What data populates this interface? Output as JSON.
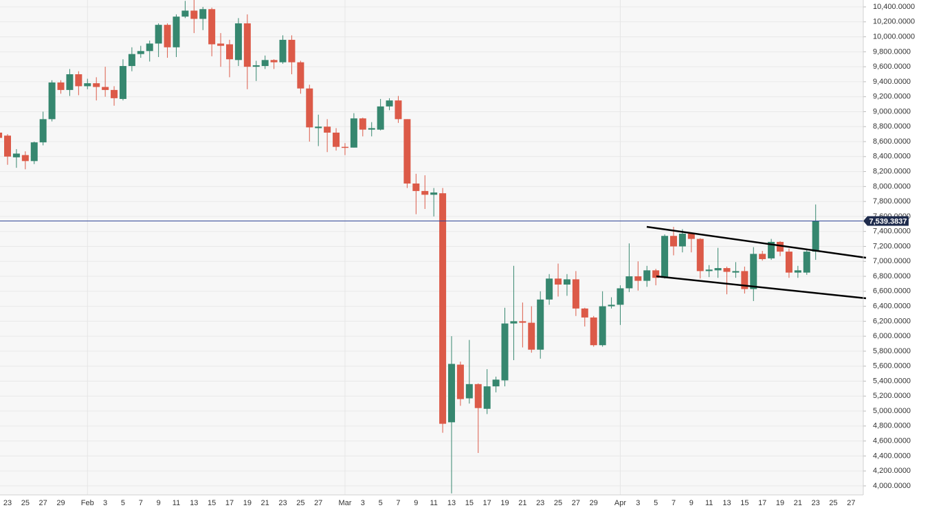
{
  "chart_data": {
    "type": "candlestick",
    "categories": [
      null,
      "23",
      null,
      "25",
      null,
      "27",
      null,
      "29",
      null,
      null,
      "Feb",
      null,
      "3",
      null,
      "5",
      null,
      "7",
      null,
      "9",
      null,
      "11",
      null,
      "13",
      null,
      "15",
      null,
      "17",
      null,
      "19",
      null,
      "21",
      null,
      "23",
      null,
      "25",
      null,
      "27",
      null,
      null,
      "Mar",
      null,
      "3",
      null,
      "5",
      null,
      "7",
      null,
      "9",
      null,
      "11",
      null,
      "13",
      null,
      "15",
      null,
      "17",
      null,
      "19",
      null,
      "21",
      null,
      "23",
      null,
      "25",
      null,
      "27",
      null,
      "29",
      null,
      null,
      "Apr",
      null,
      "3",
      null,
      "5",
      null,
      "7",
      null,
      "9",
      null,
      "11",
      null,
      "13",
      null,
      "15",
      null,
      "17",
      null,
      "19",
      null,
      "21",
      null,
      "23",
      null,
      "25",
      null,
      "27"
    ],
    "open": [
      8720,
      8680,
      8390,
      8420,
      8340,
      8590,
      8900,
      9390,
      9290,
      9500,
      9340,
      9380,
      9330,
      9290,
      9170,
      9610,
      9770,
      9810,
      9910,
      10160,
      9860,
      10270,
      10350,
      10240,
      10370,
      9910,
      9900,
      9690,
      10180,
      9600,
      9610,
      9690,
      9660,
      9960,
      9660,
      9310,
      8780,
      8800,
      8720,
      8530,
      8520,
      8910,
      8760,
      8760,
      9070,
      9150,
      8900,
      8040,
      7940,
      7890,
      7910,
      4850,
      5620,
      5170,
      5360,
      5030,
      5330,
      5410,
      6170,
      6200,
      6180,
      5820,
      6490,
      6770,
      6690,
      6760,
      6370,
      6250,
      5880,
      6400,
      6420,
      6640,
      6800,
      6740,
      6880,
      6780,
      7340,
      7200,
      7370,
      7300,
      6870,
      6880,
      6910,
      6850,
      6870,
      6630,
      7100,
      7040,
      7260,
      7130,
      6850,
      6850,
      7130,
      null,
      null,
      null,
      null
    ],
    "high": [
      8800,
      8700,
      8500,
      8470,
      8600,
      9000,
      9420,
      9420,
      9570,
      9540,
      9440,
      9460,
      9600,
      9340,
      9700,
      9860,
      9880,
      9950,
      10180,
      10180,
      10300,
      10480,
      10500,
      10400,
      10390,
      10050,
      9960,
      10250,
      10300,
      9680,
      9750,
      9700,
      10020,
      10020,
      9680,
      9360,
      8960,
      8900,
      8780,
      8580,
      8980,
      8920,
      8860,
      9170,
      9180,
      9210,
      8900,
      8170,
      8150,
      7980,
      7980,
      6000,
      5660,
      5950,
      5370,
      5560,
      5460,
      6380,
      6940,
      6450,
      6400,
      6600,
      6830,
      6970,
      6830,
      6870,
      6380,
      6270,
      6600,
      6520,
      6680,
      7240,
      7000,
      6940,
      6900,
      7360,
      7460,
      7430,
      7380,
      7310,
      6950,
      7180,
      6930,
      6990,
      6930,
      7190,
      7140,
      7300,
      7270,
      7170,
      6940,
      7150,
      7760,
      null,
      null,
      null,
      null
    ],
    "low": [
      8600,
      8290,
      8250,
      8230,
      8300,
      8550,
      8870,
      9240,
      9210,
      9220,
      9300,
      9150,
      9200,
      9080,
      9150,
      9540,
      9720,
      9670,
      9730,
      9720,
      9730,
      10250,
      10050,
      10090,
      9740,
      9600,
      9460,
      9610,
      9300,
      9410,
      9570,
      9570,
      9640,
      9500,
      9240,
      8600,
      8540,
      8460,
      8480,
      8420,
      8520,
      8670,
      8670,
      8750,
      9020,
      8850,
      7980,
      7630,
      7700,
      7600,
      4710,
      3900,
      5070,
      5100,
      4440,
      4960,
      5250,
      5330,
      5680,
      5850,
      5780,
      5700,
      6420,
      6530,
      6540,
      6270,
      6130,
      5860,
      5860,
      6370,
      6150,
      6590,
      6610,
      6660,
      6680,
      6770,
      7080,
      7120,
      7120,
      6770,
      6790,
      6780,
      6560,
      6780,
      6570,
      6470,
      7010,
      7020,
      7070,
      6780,
      6780,
      6820,
      7020,
      null,
      null,
      null,
      null
    ],
    "close": [
      8650,
      8400,
      8440,
      8340,
      8590,
      8900,
      9390,
      9290,
      9500,
      9340,
      9380,
      9330,
      9290,
      9180,
      9610,
      9770,
      9810,
      9910,
      10160,
      9860,
      10270,
      10350,
      10240,
      10370,
      9900,
      9880,
      9700,
      10180,
      9600,
      9620,
      9690,
      9660,
      9960,
      9660,
      9310,
      8790,
      8800,
      8720,
      8530,
      8520,
      8910,
      8760,
      8780,
      9070,
      9150,
      8900,
      8040,
      7940,
      7890,
      7920,
      4830,
      5630,
      5160,
      5360,
      5040,
      5330,
      5420,
      6170,
      6200,
      6180,
      5820,
      6490,
      6770,
      6690,
      6760,
      6370,
      6250,
      5880,
      6400,
      6420,
      6640,
      6800,
      6740,
      6880,
      6780,
      7340,
      7200,
      7370,
      7300,
      6870,
      6890,
      6910,
      6860,
      6870,
      6630,
      7100,
      7030,
      7260,
      7130,
      6850,
      6880,
      7130,
      7540,
      null,
      null,
      null,
      null
    ],
    "up_color": "#36876f",
    "down_color": "#dc5a48",
    "ylim": [
      3880,
      10492
    ],
    "yticks": [
      {
        "value": 4000,
        "label": "4,000.0000"
      },
      {
        "value": 4200,
        "label": "4,200.0000"
      },
      {
        "value": 4400,
        "label": "4,400.0000"
      },
      {
        "value": 4600,
        "label": "4,600.0000"
      },
      {
        "value": 4800,
        "label": "4,800.0000"
      },
      {
        "value": 5000,
        "label": "5,000.0000"
      },
      {
        "value": 5200,
        "label": "5,200.0000"
      },
      {
        "value": 5400,
        "label": "5,400.0000"
      },
      {
        "value": 5600,
        "label": "5,600.0000"
      },
      {
        "value": 5800,
        "label": "5,800.0000"
      },
      {
        "value": 6000,
        "label": "6,000.0000"
      },
      {
        "value": 6200,
        "label": "6,200.0000"
      },
      {
        "value": 6400,
        "label": "6,400.0000"
      },
      {
        "value": 6600,
        "label": "6,600.0000"
      },
      {
        "value": 6800,
        "label": "6,800.0000"
      },
      {
        "value": 7000,
        "label": "7,000.0000"
      },
      {
        "value": 7200,
        "label": "7,200.0000"
      },
      {
        "value": 7400,
        "label": "7,400.0000"
      },
      {
        "value": 7600,
        "label": "7,600.0000"
      },
      {
        "value": 7800,
        "label": "7,800.0000"
      },
      {
        "value": 8000,
        "label": "8,000.0000"
      },
      {
        "value": 8200,
        "label": "8,200.0000"
      },
      {
        "value": 8400,
        "label": "8,400.0000"
      },
      {
        "value": 8600,
        "label": "8,600.0000"
      },
      {
        "value": 8800,
        "label": "8,800.0000"
      },
      {
        "value": 9000,
        "label": "9,000.0000"
      },
      {
        "value": 9200,
        "label": "9,200.0000"
      },
      {
        "value": 9400,
        "label": "9,400.0000"
      },
      {
        "value": 9600,
        "label": "9,600.0000"
      },
      {
        "value": 9800,
        "label": "9,800.0000"
      },
      {
        "value": 10000,
        "label": "10,000.0000"
      },
      {
        "value": 10200,
        "label": "10,200.0000"
      },
      {
        "value": 10400,
        "label": "10,400.0000"
      }
    ],
    "grid": true,
    "last_price": {
      "value": 7539.3837,
      "label": "7,539.3837"
    },
    "last_price_color": "#2f4596"
  }
}
